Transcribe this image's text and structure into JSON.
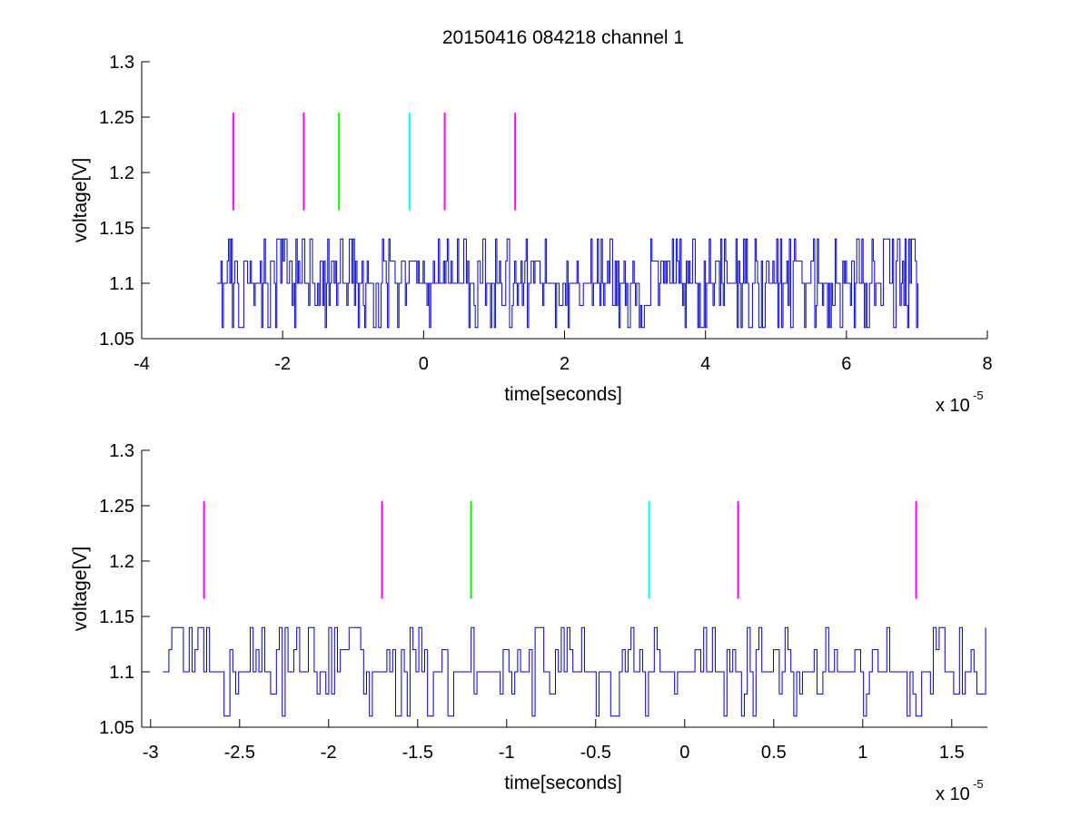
{
  "figure": {
    "title": "20150416 084218 channel 1",
    "background": "#ffffff"
  },
  "chart_data": [
    {
      "type": "line",
      "title": "20150416 084218 channel 1",
      "xlabel": "time[seconds]",
      "ylabel": "voltage[V]",
      "x_multiplier_label": "x 10",
      "x_multiplier_exponent": "-5",
      "xlim": [
        -4,
        8
      ],
      "ylim": [
        1.05,
        1.3
      ],
      "xticks": [
        -4,
        -2,
        0,
        2,
        4,
        6,
        8
      ],
      "xtick_labels": [
        "-4",
        "-2",
        "0",
        "2",
        "4",
        "6",
        "8"
      ],
      "yticks": [
        1.05,
        1.1,
        1.15,
        1.2,
        1.25,
        1.3
      ],
      "ytick_labels": [
        "1.05",
        "1.1",
        "1.15",
        "1.2",
        "1.25",
        "1.3"
      ],
      "grid": false,
      "signal": {
        "color": "#0000cc",
        "x_start": -2.93,
        "x_end": 7.02,
        "levels": [
          1.06,
          1.08,
          1.1,
          1.12,
          1.14
        ],
        "baseline": 1.1
      },
      "markers": [
        {
          "x": -2.7,
          "color": "#ff00ff",
          "y_bottom": 1.166,
          "y_top": 1.254
        },
        {
          "x": -1.7,
          "color": "#ff00ff",
          "y_bottom": 1.166,
          "y_top": 1.254
        },
        {
          "x": -1.2,
          "color": "#00ff00",
          "y_bottom": 1.166,
          "y_top": 1.254
        },
        {
          "x": -0.2,
          "color": "#00ffff",
          "y_bottom": 1.166,
          "y_top": 1.254
        },
        {
          "x": 0.3,
          "color": "#ff00ff",
          "y_bottom": 1.166,
          "y_top": 1.254
        },
        {
          "x": 1.3,
          "color": "#ff00ff",
          "y_bottom": 1.166,
          "y_top": 1.254
        }
      ]
    },
    {
      "type": "line",
      "title": "",
      "xlabel": "time[seconds]",
      "ylabel": "voltage[V]",
      "x_multiplier_label": "x 10",
      "x_multiplier_exponent": "-5",
      "xlim": [
        -3.05,
        1.7
      ],
      "ylim": [
        1.05,
        1.3
      ],
      "xticks": [
        -3,
        -2.5,
        -2,
        -1.5,
        -1,
        -0.5,
        0,
        0.5,
        1,
        1.5
      ],
      "xtick_labels": [
        "-3",
        "-2.5",
        "-2",
        "-1.5",
        "-1",
        "-0.5",
        "0",
        "0.5",
        "1",
        "1.5"
      ],
      "yticks": [
        1.05,
        1.1,
        1.15,
        1.2,
        1.25,
        1.3
      ],
      "ytick_labels": [
        "1.05",
        "1.1",
        "1.15",
        "1.2",
        "1.25",
        "1.3"
      ],
      "grid": false,
      "signal": {
        "color": "#0000cc",
        "x_start": -2.93,
        "x_end": 1.7,
        "levels": [
          1.06,
          1.08,
          1.1,
          1.12,
          1.14
        ],
        "baseline": 1.1
      },
      "markers": [
        {
          "x": -2.7,
          "color": "#ff00ff",
          "y_bottom": 1.166,
          "y_top": 1.254
        },
        {
          "x": -1.7,
          "color": "#ff00ff",
          "y_bottom": 1.166,
          "y_top": 1.254
        },
        {
          "x": -1.2,
          "color": "#00ff00",
          "y_bottom": 1.166,
          "y_top": 1.254
        },
        {
          "x": -0.2,
          "color": "#00ffff",
          "y_bottom": 1.166,
          "y_top": 1.254
        },
        {
          "x": 0.3,
          "color": "#ff00ff",
          "y_bottom": 1.166,
          "y_top": 1.254
        },
        {
          "x": 1.3,
          "color": "#ff00ff",
          "y_bottom": 1.166,
          "y_top": 1.254
        }
      ]
    }
  ]
}
